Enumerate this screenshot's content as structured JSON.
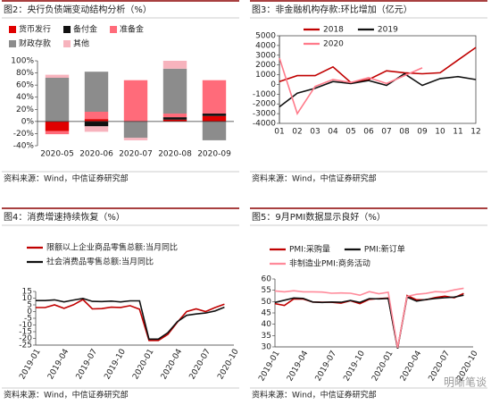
{
  "chart_data": [
    {
      "type": "stacked-bar",
      "title": "图2：央行负债端变动结构分析（%）",
      "source": "资料来源：Wind，中信证券研究部",
      "categories": [
        "2020-05",
        "2020-06",
        "2020-07",
        "2020-08",
        "2020-09"
      ],
      "series": [
        {
          "name": "货币发行",
          "color": "#e00000",
          "values": [
            -16,
            4,
            0,
            3,
            9
          ]
        },
        {
          "name": "备付金",
          "color": "#111111",
          "values": [
            0,
            -8,
            0,
            4,
            4
          ]
        },
        {
          "name": "准备金",
          "color": "#ff6b7a",
          "values": [
            -5,
            12,
            68,
            6,
            55
          ]
        },
        {
          "name": "财政存款",
          "color": "#8c8c8c",
          "values": [
            72,
            66,
            -27,
            74,
            -31
          ]
        },
        {
          "name": "其他",
          "color": "#f7b3bd",
          "values": [
            5,
            -9,
            -4,
            13,
            0
          ]
        }
      ],
      "ylim": [
        -40,
        100
      ],
      "yticks": [
        {
          "value": -40,
          "label": "-40%"
        },
        {
          "value": -20,
          "label": "-20%"
        },
        {
          "value": 0,
          "label": "0%"
        },
        {
          "value": 20,
          "label": "20%"
        },
        {
          "value": 40,
          "label": "40%"
        },
        {
          "value": 60,
          "label": "60%"
        },
        {
          "value": 80,
          "label": "80%"
        },
        {
          "value": 100,
          "label": "100%"
        }
      ],
      "legend": "top"
    },
    {
      "type": "line",
      "title": "图3：非金融机构存款:环比增加（亿元）",
      "source": "资料来源：Wind，中信证券研究部",
      "categories": [
        "01",
        "02",
        "03",
        "04",
        "05",
        "06",
        "07",
        "08",
        "09",
        "10",
        "11",
        "12"
      ],
      "series": [
        {
          "name": "2018",
          "color": "#c00000",
          "values": [
            300,
            900,
            900,
            1800,
            200,
            500,
            1400,
            1200,
            1100,
            1200,
            2500,
            3800
          ]
        },
        {
          "name": "2019",
          "color": "#111111",
          "values": [
            -2300,
            -900,
            -400,
            300,
            100,
            400,
            -100,
            1100,
            -100,
            600,
            800,
            500
          ]
        },
        {
          "name": "2020",
          "color": "#ff7a8a",
          "values": [
            2700,
            -3000,
            -200,
            500,
            200,
            700,
            100,
            900,
            1700,
            null,
            null,
            null
          ]
        }
      ],
      "ylim": [
        -4000,
        5000
      ],
      "yticks": [
        -4000,
        -3000,
        -2000,
        -1000,
        0,
        1000,
        2000,
        3000,
        4000,
        5000
      ],
      "legend": "top",
      "frame": true
    },
    {
      "type": "line",
      "title": "图4：消费增速持续恢复（%）",
      "source": "资料来源：Wind，中信证券研究部",
      "categories": [
        "2019-01",
        null,
        null,
        "2019-04",
        null,
        null,
        "2019-07",
        null,
        null,
        "2019-10",
        null,
        null,
        "2020-01",
        null,
        null,
        "2020-04",
        null,
        null,
        "2020-07",
        null,
        null,
        "2020-10"
      ],
      "series": [
        {
          "name": "限额以上企业商品零售总额:当月同比",
          "color": "#c00000",
          "values": [
            3,
            3,
            5,
            2.4,
            5.1,
            9,
            2,
            2.2,
            3.3,
            3.1,
            4.4,
            1.7,
            -21.5,
            -21.5,
            -17,
            -8,
            0,
            2,
            0,
            3,
            5.5,
            null
          ]
        },
        {
          "name": "社会消费品零售总额:当月同比",
          "color": "#111111",
          "values": [
            8.2,
            8.2,
            8.7,
            7.2,
            8.6,
            9.8,
            7.6,
            7.5,
            7.8,
            7.2,
            8,
            8,
            -20.5,
            -20.5,
            -15.8,
            -7.5,
            -2.8,
            -1.8,
            -1.1,
            0.5,
            3.3,
            null
          ]
        }
      ],
      "ylim": [
        -25,
        15
      ],
      "yticks": [
        -25,
        -20,
        -15,
        -10,
        -5,
        0,
        5,
        10,
        15
      ],
      "legend": "top",
      "rotate_x": true
    },
    {
      "type": "line",
      "title": "图5：9月PMI数据显示良好（%）",
      "source": "资料来源：Wind，中信证券研究部",
      "categories": [
        "2019-01",
        null,
        null,
        "2019-04",
        null,
        null,
        "2019-07",
        null,
        null,
        "2019-10",
        null,
        null,
        "2020-01",
        null,
        null,
        "2020-04",
        null,
        null,
        "2020-07",
        null,
        null,
        "2020-10"
      ],
      "series": [
        {
          "name": "PMI:采购量",
          "color": "#c00000",
          "values": [
            49.1,
            48.3,
            51.2,
            51.1,
            49.8,
            49.7,
            49.7,
            49.3,
            50.4,
            49.1,
            51,
            51.3,
            51.6,
            29.3,
            52.7,
            50.8,
            50.8,
            51.8,
            52.4,
            51.7,
            53.6,
            null
          ]
        },
        {
          "name": "PMI:新订单",
          "color": "#111111",
          "values": [
            49.6,
            50.6,
            51.6,
            51.4,
            49.8,
            49.6,
            49.8,
            49.7,
            50.5,
            49.6,
            51.3,
            51.2,
            51.4,
            29.3,
            52,
            50.2,
            50.9,
            51.4,
            51.7,
            52,
            52.8,
            null
          ]
        },
        {
          "name": "非制造业PMI:商务活动",
          "color": "#ff8a9a",
          "values": [
            54.7,
            54.3,
            54.8,
            54.3,
            54.3,
            54.2,
            53.7,
            53.8,
            53.7,
            52.8,
            54.4,
            53.5,
            54.1,
            29.6,
            52.3,
            53.2,
            53.6,
            54.4,
            54.2,
            55.2,
            55.9,
            null
          ]
        }
      ],
      "ylim": [
        30,
        60
      ],
      "yticks": [
        30,
        35,
        40,
        45,
        50,
        55,
        60
      ],
      "legend": "top",
      "rotate_x": true
    }
  ],
  "watermark": "明晰笔谈"
}
